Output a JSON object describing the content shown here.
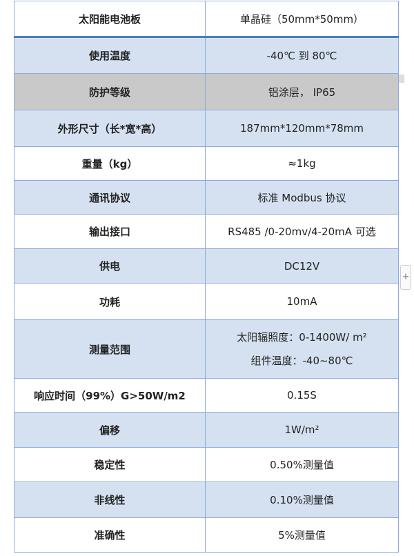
{
  "rows": [
    {
      "key": "太阳能电池板",
      "value": "单晶硅（50mm*50mm）",
      "color": "white"
    },
    {
      "key": "使用温度",
      "value": "-40℃ 到 80℃",
      "color": "blue"
    },
    {
      "key": "防护等级",
      "value": "铝涂层， IP65",
      "color": "gray"
    },
    {
      "key": "外形尺寸（长*宽*高）",
      "value": "187mm*120mm*78mm",
      "color": "blue"
    },
    {
      "key": "重量（kg）",
      "value": "≈1kg",
      "color": "white"
    },
    {
      "key": "通讯协议",
      "value": "标准 Modbus 协议",
      "color": "blue"
    },
    {
      "key": "输出接口",
      "value": "RS485 /0-20mv/4-20mA 可选",
      "color": "white"
    },
    {
      "key": "供电",
      "value": "DC12V",
      "color": "blue"
    },
    {
      "key": "功耗",
      "value": "10mA",
      "color": "white"
    },
    {
      "key": "测量范围",
      "value": "太阳辐照度：0-1400W/ m²",
      "value2": "组件温度：-40~80℃",
      "color": "blue"
    },
    {
      "key": "响应时间（99%）G>50W/m2",
      "value": "0.15S",
      "color": "white"
    },
    {
      "key": "偏移",
      "value": "1W/m²",
      "color": "blue"
    },
    {
      "key": "稳定性",
      "value": "0.50%测量值",
      "color": "white"
    },
    {
      "key": "非线性",
      "value": "0.10%测量值",
      "color": "blue"
    },
    {
      "key": "准确性",
      "value": "5%测量值",
      "color": "white"
    }
  ],
  "add_button": "+",
  "colors": {
    "blue": "#d5e1f1",
    "gray": "#c9c9c9",
    "border": "#8eaadb"
  }
}
